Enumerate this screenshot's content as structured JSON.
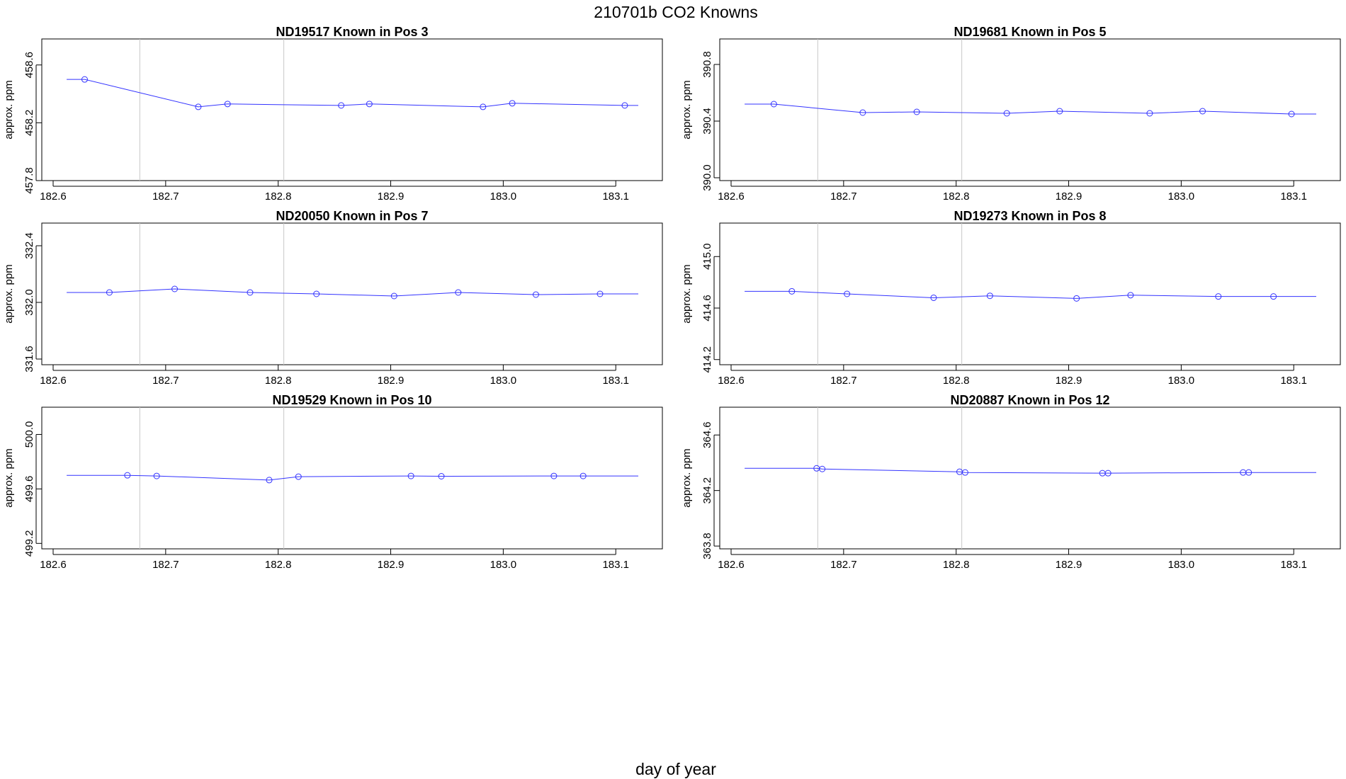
{
  "figure": {
    "title": "210701b   CO2 Knowns",
    "xlabel": "day of year"
  },
  "style": {
    "series_color": "#3333ff",
    "vline_color": "#c8c8c8",
    "frame_color": "#000000"
  },
  "chart_data": [
    {
      "type": "line",
      "title": "ND19517    Known in Pos 3",
      "ylabel": "approx. ppm",
      "xlim": [
        182.6,
        183.12
      ],
      "ylim": [
        457.8,
        458.78
      ],
      "xticks": [
        182.6,
        182.7,
        182.8,
        182.9,
        183.0,
        183.1
      ],
      "xtick_labels": [
        "182.6",
        "182.7",
        "182.8",
        "182.9",
        "183.0",
        "183.1"
      ],
      "yticks": [
        457.8,
        458.2,
        458.6
      ],
      "ytick_labels": [
        "457.8",
        "458.2",
        "458.6"
      ],
      "vlines": [
        182.677,
        182.805
      ],
      "grid": false,
      "series": [
        {
          "x": [
            182.612,
            182.628,
            182.729,
            182.755,
            182.856,
            182.881,
            182.982,
            183.008,
            183.108,
            183.12
          ],
          "y": [
            458.5,
            458.5,
            458.31,
            458.33,
            458.32,
            458.33,
            458.31,
            458.335,
            458.32,
            458.32
          ],
          "markers": [
            false,
            true,
            true,
            true,
            true,
            true,
            true,
            true,
            true,
            false
          ]
        }
      ]
    },
    {
      "type": "line",
      "title": "ND19681    Known in Pos 5",
      "ylabel": "approx. ppm",
      "xlim": [
        182.6,
        183.12
      ],
      "ylim": [
        389.98,
        390.98
      ],
      "xticks": [
        182.6,
        182.7,
        182.8,
        182.9,
        183.0,
        183.1
      ],
      "xtick_labels": [
        "182.6",
        "182.7",
        "182.8",
        "182.9",
        "183.0",
        "183.1"
      ],
      "yticks": [
        390.0,
        390.4,
        390.8
      ],
      "ytick_labels": [
        "390.0",
        "390.4",
        "390.8"
      ],
      "vlines": [
        182.677,
        182.805
      ],
      "grid": false,
      "series": [
        {
          "x": [
            182.612,
            182.638,
            182.717,
            182.765,
            182.845,
            182.892,
            182.972,
            183.019,
            183.098,
            183.12
          ],
          "y": [
            390.52,
            390.52,
            390.46,
            390.465,
            390.455,
            390.47,
            390.455,
            390.47,
            390.45,
            390.45
          ],
          "markers": [
            false,
            true,
            true,
            true,
            true,
            true,
            true,
            true,
            true,
            false
          ]
        }
      ]
    },
    {
      "type": "line",
      "title": "ND20050    Known in Pos 7",
      "ylabel": "approx. ppm",
      "xlim": [
        182.6,
        183.12
      ],
      "ylim": [
        331.56,
        332.56
      ],
      "xticks": [
        182.6,
        182.7,
        182.8,
        182.9,
        183.0,
        183.1
      ],
      "xtick_labels": [
        "182.6",
        "182.7",
        "182.8",
        "182.9",
        "183.0",
        "183.1"
      ],
      "yticks": [
        331.6,
        332.0,
        332.4
      ],
      "ytick_labels": [
        "331.6",
        "332.0",
        "332.4"
      ],
      "vlines": [
        182.677,
        182.805
      ],
      "grid": false,
      "series": [
        {
          "x": [
            182.612,
            182.65,
            182.708,
            182.775,
            182.834,
            182.903,
            182.96,
            183.029,
            183.086,
            183.12
          ],
          "y": [
            332.07,
            332.07,
            332.095,
            332.07,
            332.06,
            332.045,
            332.07,
            332.055,
            332.06,
            332.06
          ],
          "markers": [
            false,
            true,
            true,
            true,
            true,
            true,
            true,
            true,
            true,
            false
          ]
        }
      ]
    },
    {
      "type": "line",
      "title": "ND19273    Known in Pos 8",
      "ylabel": "approx. ppm",
      "xlim": [
        182.6,
        183.12
      ],
      "ylim": [
        414.16,
        415.26
      ],
      "xticks": [
        182.6,
        182.7,
        182.8,
        182.9,
        183.0,
        183.1
      ],
      "xtick_labels": [
        "182.6",
        "182.7",
        "182.8",
        "182.9",
        "183.0",
        "183.1"
      ],
      "yticks": [
        414.2,
        414.6,
        415.0
      ],
      "ytick_labels": [
        "414.2",
        "414.6",
        "415.0"
      ],
      "vlines": [
        182.677,
        182.805
      ],
      "grid": false,
      "series": [
        {
          "x": [
            182.612,
            182.654,
            182.703,
            182.78,
            182.83,
            182.907,
            182.955,
            183.033,
            183.082,
            183.12
          ],
          "y": [
            414.73,
            414.73,
            414.71,
            414.68,
            414.695,
            414.675,
            414.7,
            414.69,
            414.69,
            414.69
          ],
          "markers": [
            false,
            true,
            true,
            true,
            true,
            true,
            true,
            true,
            true,
            false
          ]
        }
      ]
    },
    {
      "type": "line",
      "title": "ND19529    Known in Pos 10",
      "ylabel": "approx. ppm",
      "xlim": [
        182.6,
        183.12
      ],
      "ylim": [
        499.16,
        500.2
      ],
      "xticks": [
        182.6,
        182.7,
        182.8,
        182.9,
        183.0,
        183.1
      ],
      "xtick_labels": [
        "182.6",
        "182.7",
        "182.8",
        "182.9",
        "183.0",
        "183.1"
      ],
      "yticks": [
        499.2,
        499.6,
        500.0
      ],
      "ytick_labels": [
        "499.2",
        "499.6",
        "500.0"
      ],
      "vlines": [
        182.677,
        182.805
      ],
      "grid": false,
      "series": [
        {
          "x": [
            182.612,
            182.666,
            182.692,
            182.792,
            182.818,
            182.918,
            182.945,
            183.045,
            183.071,
            183.12
          ],
          "y": [
            499.7,
            499.7,
            499.695,
            499.665,
            499.69,
            499.695,
            499.693,
            499.695,
            499.695,
            499.695
          ],
          "markers": [
            false,
            true,
            true,
            true,
            true,
            true,
            true,
            true,
            true,
            false
          ]
        }
      ]
    },
    {
      "type": "line",
      "title": "ND20887    Known in Pos 12",
      "ylabel": "approx. ppm",
      "xlim": [
        182.6,
        183.12
      ],
      "ylim": [
        363.78,
        364.8
      ],
      "xticks": [
        182.6,
        182.7,
        182.8,
        182.9,
        183.0,
        183.1
      ],
      "xtick_labels": [
        "182.6",
        "182.7",
        "182.8",
        "182.9",
        "183.0",
        "183.1"
      ],
      "yticks": [
        363.8,
        364.2,
        364.6
      ],
      "ytick_labels": [
        "363.8",
        "364.2",
        "364.6"
      ],
      "vlines": [
        182.677,
        182.805
      ],
      "grid": false,
      "series": [
        {
          "x": [
            182.612,
            182.676,
            182.681,
            182.803,
            182.808,
            182.93,
            182.935,
            183.055,
            183.06,
            183.12
          ],
          "y": [
            364.36,
            364.36,
            364.355,
            364.335,
            364.33,
            364.325,
            364.325,
            364.33,
            364.33,
            364.33
          ],
          "markers": [
            false,
            true,
            true,
            true,
            true,
            true,
            true,
            true,
            true,
            false
          ]
        }
      ]
    }
  ]
}
